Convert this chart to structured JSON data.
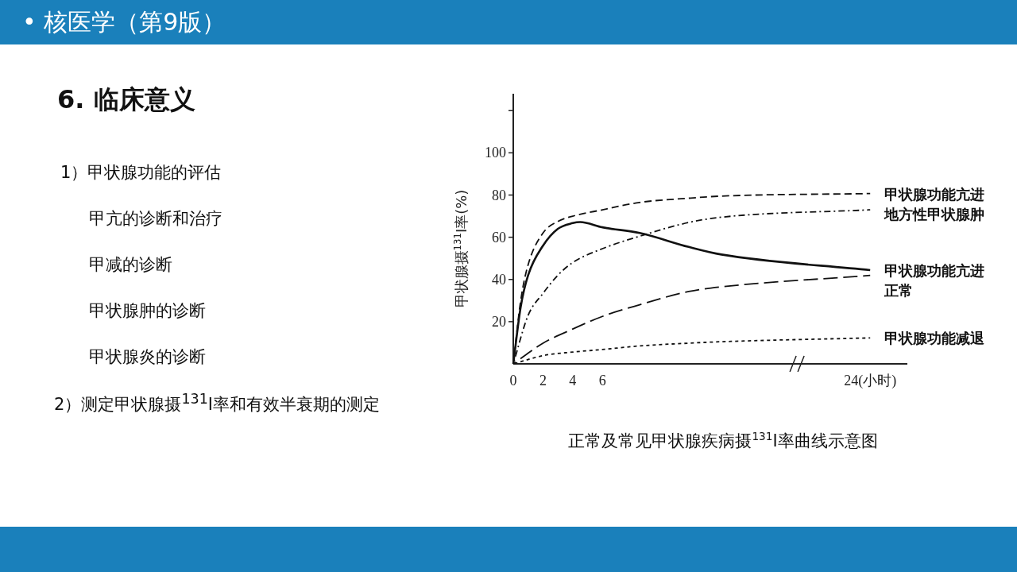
{
  "chart_data": {
    "type": "line",
    "title": "正常及常见甲状腺疾病摄$^{131}$I率曲线示意图",
    "ylabel": "甲状腺摄$^{131}$I率(%)",
    "annotations": [
      "• 核医学（第9版）",
      "6. 临床意义",
      "1）甲状腺功能的评估",
      "甲亢的诊断和治疗",
      "甲减的诊断",
      "甲状腺肿的诊断",
      "甲状腺炎的诊断",
      "2）测定甲状腺摄$^{131}$I率和有效半衰期的测定"
    ],
    "xlim": [
      0,
      26.5
    ],
    "xticks": [
      0,
      2,
      4,
      6,
      {
        "value": 24,
        "label": "24(小时)"
      }
    ],
    "ylim": [
      0,
      128
    ],
    "yticks": [
      20,
      40,
      60,
      80,
      100,
      {
        "value": 120,
        "label": null
      }
    ],
    "grid": false,
    "legend": false,
    "marker": "none",
    "series": [
      {
        "name": "甲状腺功能亢进",
        "color": "#111111",
        "line_style": "dashed",
        "x": [
          0,
          0.5,
          1,
          2,
          3,
          4,
          6,
          8.5,
          11.8,
          14,
          24
        ],
        "values": [
          0,
          30,
          47,
          62,
          67.5,
          70,
          73,
          76.5,
          78.5,
          79.5,
          80.7
        ]
      },
      {
        "name": "地方性甲状腺肿",
        "color": "#111111",
        "line_style": "dashdot",
        "x": [
          0,
          1,
          2,
          3,
          4,
          6,
          8.5,
          11.8,
          14,
          24
        ],
        "values": [
          0,
          23,
          33.4,
          42,
          48,
          54.6,
          60.5,
          67,
          69.5,
          73
        ]
      },
      {
        "name": "甲状腺功能亢进",
        "color": "#111111",
        "line_style": "solid",
        "x": [
          0,
          0.5,
          1,
          2,
          3,
          4,
          4.5,
          6,
          8.5,
          11.8,
          14,
          24
        ],
        "values": [
          0,
          27,
          42,
          56,
          64,
          66.7,
          67.2,
          64.7,
          62,
          55.4,
          51.8,
          44.4
        ]
      },
      {
        "name": "正常",
        "color": "#111111",
        "line_style": "longdash",
        "x": [
          0,
          2,
          4,
          6,
          8.5,
          11.8,
          14,
          24
        ],
        "values": [
          0,
          9.8,
          16.5,
          22.5,
          28,
          34.3,
          36.5,
          41.9
        ]
      },
      {
        "name": "甲状腺功能减退",
        "color": "#111111",
        "line_style": "dotted",
        "x": [
          0,
          2,
          4,
          6,
          8.5,
          11.8,
          14,
          24
        ],
        "values": [
          0,
          3.9,
          5.6,
          6.8,
          8.5,
          9.8,
          10.5,
          12.3
        ]
      }
    ]
  }
}
